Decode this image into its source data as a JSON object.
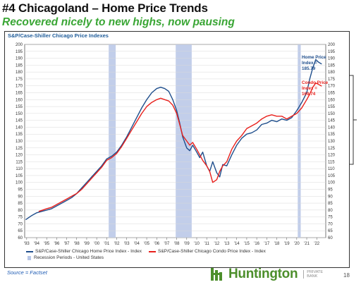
{
  "slide": {
    "title": "#4 Chicagoland – Home Price Trends",
    "subtitle": "Recovered nicely to new highs, now pausing",
    "source": "Source = Factset",
    "page_number": "18",
    "logo_text": "Huntington",
    "logo_sub_1": "PRIVATE",
    "logo_sub_2": "BANK"
  },
  "colors": {
    "home": "#1f4e8c",
    "condo": "#e8201c",
    "recession": "#b7c6e6",
    "annot_home": "#1f4e8c",
    "annot_condo": "#e8201c",
    "accent_green": "#3aa635"
  },
  "chart_data": {
    "type": "line",
    "title": "S&P/Case-Shiller Chicago Price Indexes",
    "x_tick_labels": [
      "'93",
      "'94",
      "'95",
      "'96",
      "'97",
      "'98",
      "'99",
      "'00",
      "'01",
      "'02",
      "'03",
      "'04",
      "'05",
      "'06",
      "'07",
      "'08",
      "'09",
      "'10",
      "'11",
      "'12",
      "'13",
      "'14",
      "'15",
      "'16",
      "'17",
      "'18",
      "'19",
      "'20",
      "'21",
      "'22"
    ],
    "y_ticks": [
      60,
      65,
      70,
      75,
      80,
      85,
      90,
      95,
      100,
      105,
      110,
      115,
      120,
      125,
      130,
      135,
      140,
      145,
      150,
      155,
      160,
      165,
      170,
      175,
      180,
      185,
      190,
      195,
      200
    ],
    "ylim": [
      60,
      200
    ],
    "xlim": [
      1992.8,
      2022.9
    ],
    "grid": true,
    "recessions": [
      [
        2001.2,
        2001.9
      ],
      [
        2007.9,
        2009.5
      ],
      [
        2020.1,
        2020.4
      ]
    ],
    "series": [
      {
        "name": "S&P/Case-Shiller Chicago Home Price Index - Index",
        "color_key": "home",
        "x": [
          1992.9,
          1993.5,
          1994,
          1994.5,
          1995,
          1995.5,
          1996,
          1996.5,
          1997,
          1997.5,
          1998,
          1998.5,
          1999,
          1999.5,
          2000,
          2000.5,
          2001,
          2001.5,
          2002,
          2002.5,
          2003,
          2003.5,
          2004,
          2004.5,
          2005,
          2005.5,
          2006,
          2006.4,
          2006.8,
          2007.2,
          2007.6,
          2008,
          2008.3,
          2008.6,
          2009,
          2009.3,
          2009.6,
          2010,
          2010.3,
          2010.6,
          2011,
          2011.3,
          2011.6,
          2012,
          2012.3,
          2012.6,
          2013,
          2013.5,
          2014,
          2014.5,
          2015,
          2015.5,
          2016,
          2016.5,
          2017,
          2017.5,
          2018,
          2018.5,
          2019,
          2019.5,
          2020,
          2020.5,
          2021,
          2021.3,
          2021.6,
          2021.9,
          2022.2,
          2022.5
        ],
        "y": [
          73,
          76,
          78,
          79,
          80,
          81,
          83,
          85,
          87,
          89,
          92,
          96,
          100,
          104,
          108,
          112,
          117,
          119,
          122,
          127,
          133,
          140,
          147,
          154,
          160,
          165,
          168,
          169,
          168,
          166,
          160,
          152,
          143,
          133,
          125,
          123,
          127,
          122,
          118,
          122,
          112,
          108,
          115,
          107,
          104,
          113,
          112,
          120,
          127,
          132,
          135,
          136,
          138,
          142,
          143,
          145,
          144,
          146,
          145,
          147,
          152,
          158,
          165,
          175,
          183,
          189,
          187,
          185.79
        ]
      },
      {
        "name": "S&P/Case-Shiller Chicago Condo Price Index - Index",
        "color_key": "condo",
        "x": [
          1994.2,
          1994.6,
          1995,
          1995.5,
          1996,
          1996.5,
          1997,
          1997.5,
          1998,
          1998.5,
          1999,
          1999.5,
          2000,
          2000.5,
          2001,
          2001.5,
          2002,
          2002.5,
          2003,
          2003.5,
          2004,
          2004.5,
          2005,
          2005.5,
          2006,
          2006.4,
          2006.8,
          2007.2,
          2007.6,
          2008,
          2008.3,
          2008.6,
          2009,
          2009.3,
          2009.6,
          2010,
          2010.3,
          2010.6,
          2011,
          2011.3,
          2011.6,
          2012,
          2012.3,
          2012.6,
          2013,
          2013.5,
          2014,
          2014.5,
          2015,
          2015.5,
          2016,
          2016.5,
          2017,
          2017.5,
          2018,
          2018.5,
          2019,
          2019.5,
          2020,
          2020.5,
          2021,
          2021.3,
          2021.6,
          2021.9,
          2022.2,
          2022.5
        ],
        "y": [
          79,
          80,
          81,
          82,
          84,
          86,
          88,
          90,
          92,
          95,
          99,
          103,
          107,
          111,
          116,
          118,
          121,
          126,
          132,
          138,
          144,
          150,
          155,
          158,
          160,
          161,
          160,
          159,
          156,
          150,
          142,
          134,
          130,
          127,
          129,
          124,
          120,
          116,
          112,
          108,
          100,
          102,
          108,
          112,
          115,
          124,
          130,
          134,
          139,
          141,
          143,
          146,
          148,
          149,
          148,
          148,
          146,
          148,
          150,
          154,
          160,
          164,
          169,
          172,
          171,
          169.74
        ]
      }
    ],
    "annotations": [
      {
        "line1": "Home Price",
        "line2": "Index =",
        "line3": "185.79",
        "color_key": "annot_home"
      },
      {
        "line1": "Condo Price",
        "line2": "Index =",
        "line3": "169.74",
        "color_key": "annot_condo"
      }
    ],
    "legend": {
      "home_label": "S&P/Case-Shiller Chicago Home Price Index - Index",
      "condo_label": "S&P/Case-Shiller Chicago Condo Price Index - Index",
      "recession_label": "Recession Periods - United States"
    }
  }
}
